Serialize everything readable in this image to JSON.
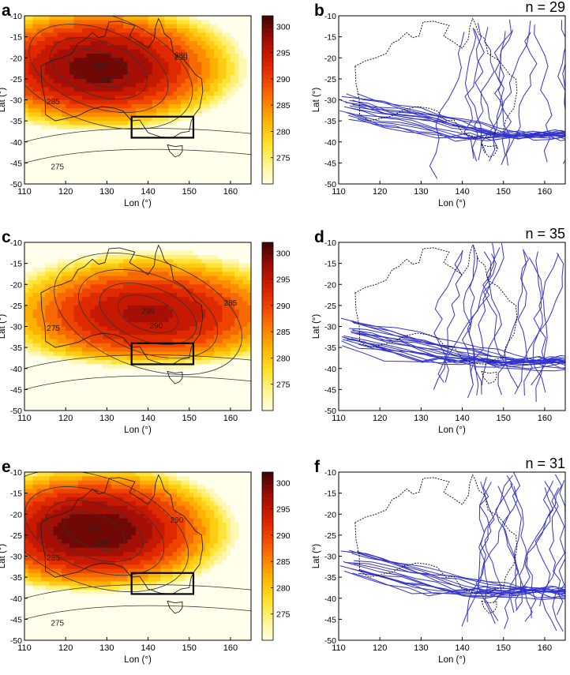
{
  "figure": {
    "row_top": [
      0,
      287,
      578
    ]
  },
  "chart_data": [
    {
      "panel": "a",
      "type": "heatmap",
      "label": "a",
      "xlabel": "Lon (°)",
      "ylabel": "Lat (°)",
      "xlim": [
        110,
        165
      ],
      "ylim": [
        -50,
        -10
      ],
      "xticks": [
        "110",
        "120",
        "130",
        "140",
        "150",
        "160"
      ],
      "yticks": [
        "-10",
        "-15",
        "-20",
        "-25",
        "-30",
        "-35",
        "-40",
        "-45",
        "-50"
      ],
      "colorbar": {
        "range": [
          270,
          302
        ],
        "ticks": [
          "300",
          "295",
          "290",
          "285",
          "280",
          "275"
        ]
      },
      "contour_labels": [
        "300",
        "295",
        "290",
        "285",
        "275",
        "280"
      ],
      "core": {
        "lon": 128,
        "lat": -22.5,
        "value": 300
      },
      "box": {
        "lon": [
          136,
          151
        ],
        "lat": [
          -39,
          -34
        ]
      }
    },
    {
      "panel": "b",
      "type": "line",
      "label": "b",
      "annotation": "n = 29",
      "n": 29,
      "xlabel": "Lon (°)",
      "ylabel": "Lat (°)",
      "xlim": [
        110,
        165
      ],
      "ylim": [
        -50,
        -10
      ],
      "xticks": [
        "110",
        "120",
        "130",
        "140",
        "150",
        "160"
      ],
      "yticks": [
        "-10",
        "-15",
        "-20",
        "-25",
        "-30",
        "-35",
        "-40",
        "-45",
        "-50"
      ],
      "line_color": "#3333cc"
    },
    {
      "panel": "c",
      "type": "heatmap",
      "label": "c",
      "xlabel": "Lon (°)",
      "ylabel": "Lat (°)",
      "xlim": [
        110,
        165
      ],
      "ylim": [
        -50,
        -10
      ],
      "xticks": [
        "110",
        "120",
        "130",
        "140",
        "150",
        "160"
      ],
      "yticks": [
        "-10",
        "-15",
        "-20",
        "-25",
        "-30",
        "-35",
        "-40",
        "-45",
        "-50"
      ],
      "colorbar": {
        "range": [
          270,
          302
        ],
        "ticks": [
          "300",
          "295",
          "290",
          "285",
          "280",
          "275"
        ]
      },
      "contour_labels": [
        "295",
        "290",
        "285",
        "275"
      ],
      "core": {
        "lon": 140,
        "lat": -27,
        "value": 297
      },
      "box": {
        "lon": [
          136,
          151
        ],
        "lat": [
          -39,
          -34
        ]
      }
    },
    {
      "panel": "d",
      "type": "line",
      "label": "d",
      "annotation": "n = 35",
      "n": 35,
      "xlabel": "Lon (°)",
      "ylabel": "Lat (°)",
      "xlim": [
        110,
        165
      ],
      "ylim": [
        -50,
        -10
      ],
      "xticks": [
        "110",
        "120",
        "130",
        "140",
        "150",
        "160"
      ],
      "yticks": [
        "-10",
        "-15",
        "-20",
        "-25",
        "-30",
        "-35",
        "-40",
        "-45",
        "-50"
      ],
      "line_color": "#3333cc"
    },
    {
      "panel": "e",
      "type": "heatmap",
      "label": "e",
      "xlabel": "Lon (°)",
      "ylabel": "Lat (°)",
      "xlim": [
        110,
        165
      ],
      "ylim": [
        -50,
        -10
      ],
      "xticks": [
        "110",
        "120",
        "130",
        "140",
        "150",
        "160"
      ],
      "yticks": [
        "-10",
        "-15",
        "-20",
        "-25",
        "-30",
        "-35",
        "-40",
        "-45",
        "-50"
      ],
      "colorbar": {
        "range": [
          270,
          302
        ],
        "ticks": [
          "300",
          "295",
          "290",
          "285",
          "280",
          "275"
        ]
      },
      "contour_labels": [
        "300",
        "295",
        "290",
        "285",
        "275"
      ],
      "core": {
        "lon": 127,
        "lat": -24,
        "value": 301
      },
      "box": {
        "lon": [
          136,
          151
        ],
        "lat": [
          -39,
          -34
        ]
      }
    },
    {
      "panel": "f",
      "type": "line",
      "label": "f",
      "annotation": "n = 31",
      "n": 31,
      "xlabel": "Lon (°)",
      "ylabel": "Lat (°)",
      "xlim": [
        110,
        165
      ],
      "ylim": [
        -50,
        -10
      ],
      "xticks": [
        "110",
        "120",
        "130",
        "140",
        "150",
        "160"
      ],
      "yticks": [
        "-10",
        "-15",
        "-20",
        "-25",
        "-30",
        "-35",
        "-40",
        "-45",
        "-50"
      ],
      "line_color": "#3333cc"
    }
  ]
}
